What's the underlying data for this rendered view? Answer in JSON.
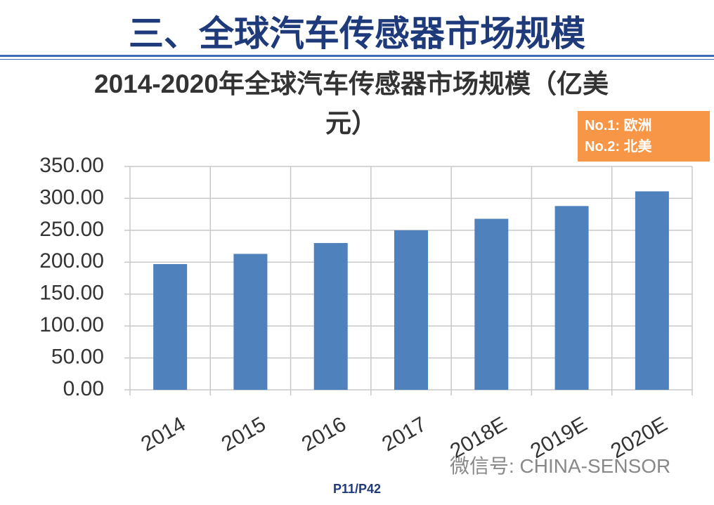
{
  "slide": {
    "title": "三、全球汽车传感器市场规模",
    "watermark": "微信号: CHINA-SENSOR",
    "page": "P11/P42"
  },
  "chart_data": {
    "type": "bar",
    "title": "2014-2020年全球汽车传感器市场规模（亿美元）",
    "categories": [
      "2014",
      "2015",
      "2016",
      "2017",
      "2018E",
      "2019E",
      "2020E"
    ],
    "values": [
      197,
      213,
      230,
      250,
      268,
      288,
      311
    ],
    "color": "#4f81bd",
    "ylim": [
      0,
      350
    ],
    "yticks": [
      {
        "value": 0,
        "label": "0.00"
      },
      {
        "value": 50,
        "label": "50.00"
      },
      {
        "value": 100,
        "label": "100.00"
      },
      {
        "value": 150,
        "label": "150.00"
      },
      {
        "value": 200,
        "label": "200.00"
      },
      {
        "value": 250,
        "label": "250.00"
      },
      {
        "value": 300,
        "label": "300.00"
      },
      {
        "value": 350,
        "label": "350.00"
      }
    ],
    "grid": true,
    "notes": [
      "No.1: 欧洲",
      "No.2: 北美"
    ]
  }
}
